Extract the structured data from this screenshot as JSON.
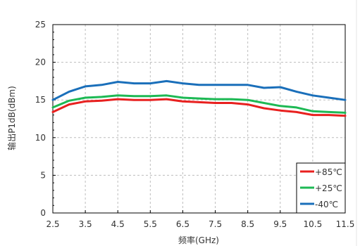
{
  "chart_data": {
    "type": "line",
    "xlabel": "频率(GHz)",
    "ylabel": "输出P1dB(dBm)",
    "xlim": [
      2.5,
      11.5
    ],
    "ylim": [
      0,
      25
    ],
    "x_ticks": [
      "2.5",
      "3.5",
      "4.5",
      "5.5",
      "6.5",
      "7.5",
      "8.5",
      "9.5",
      "10.5",
      "11.5"
    ],
    "y_ticks": [
      "0",
      "5",
      "10",
      "15",
      "20",
      "25"
    ],
    "grid": true,
    "legend_position": "bottom-right",
    "x": [
      2.5,
      3.0,
      3.5,
      4.0,
      4.5,
      5.0,
      5.5,
      6.0,
      6.5,
      7.0,
      7.5,
      8.0,
      8.5,
      9.0,
      9.5,
      10.0,
      10.5,
      11.0,
      11.5
    ],
    "series": [
      {
        "name": "+85℃",
        "color": "#e8201f",
        "values": [
          13.4,
          14.4,
          14.8,
          14.9,
          15.1,
          15.0,
          15.0,
          15.1,
          14.8,
          14.7,
          14.6,
          14.6,
          14.4,
          13.9,
          13.6,
          13.4,
          13.0,
          13.0,
          12.9
        ]
      },
      {
        "name": "+25℃",
        "color": "#1db954",
        "values": [
          14.0,
          14.9,
          15.3,
          15.4,
          15.6,
          15.5,
          15.5,
          15.6,
          15.3,
          15.2,
          15.1,
          15.1,
          15.0,
          14.6,
          14.2,
          14.0,
          13.5,
          13.4,
          13.3
        ]
      },
      {
        "name": "-40℃",
        "color": "#1a6fba",
        "values": [
          15.0,
          16.1,
          16.8,
          17.0,
          17.4,
          17.2,
          17.2,
          17.5,
          17.2,
          17.0,
          17.0,
          17.0,
          17.0,
          16.6,
          16.7,
          16.1,
          15.6,
          15.3,
          15.0
        ]
      }
    ]
  }
}
